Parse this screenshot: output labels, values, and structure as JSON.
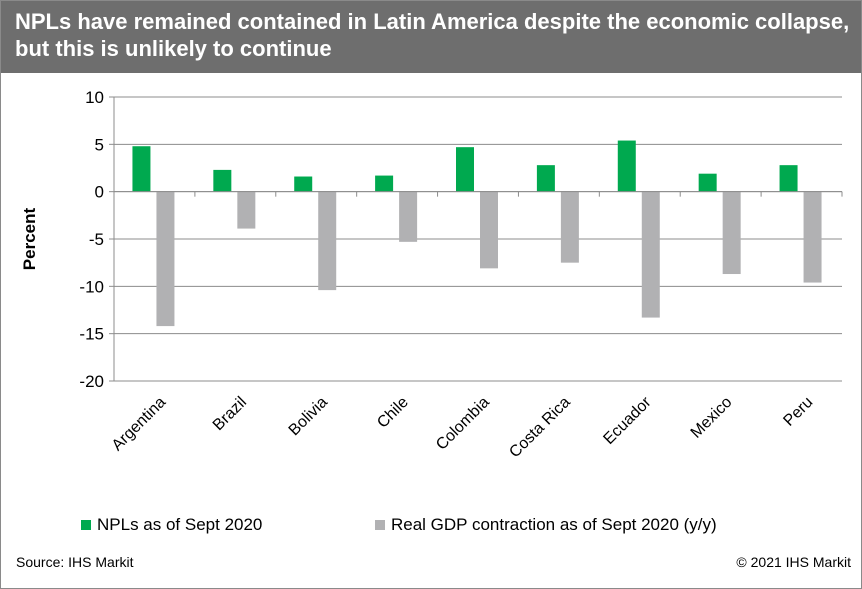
{
  "title": "NPLs have remained contained in Latin America despite the economic collapse, but this is unlikely to continue",
  "source": "Source: IHS Markit",
  "copyright": "© 2021 IHS Markit",
  "chart_data": {
    "type": "bar",
    "title": "NPLs have remained contained in Latin America despite the economic collapse, but this is unlikely to continue",
    "ylabel": "Percent",
    "xlabel": "",
    "ylim": [
      -20,
      10
    ],
    "yticks": [
      10,
      5,
      0,
      -5,
      -10,
      -15,
      -20
    ],
    "grid": true,
    "legend_position": "bottom",
    "categories": [
      "Argentina",
      "Brazil",
      "Bolivia",
      "Chile",
      "Colombia",
      "Costa Rica",
      "Ecuador",
      "Mexico",
      "Peru"
    ],
    "series": [
      {
        "name": "NPLs as of Sept 2020",
        "color": "#00a94f",
        "values": [
          4.8,
          2.3,
          1.6,
          1.7,
          4.7,
          2.8,
          5.4,
          1.9,
          2.8
        ]
      },
      {
        "name": "Real GDP contraction as of Sept 2020 (y/y)",
        "color": "#b1b1b3",
        "values": [
          -14.2,
          -3.9,
          -10.4,
          -5.3,
          -8.1,
          -7.5,
          -13.3,
          -8.7,
          -9.6
        ]
      }
    ]
  }
}
